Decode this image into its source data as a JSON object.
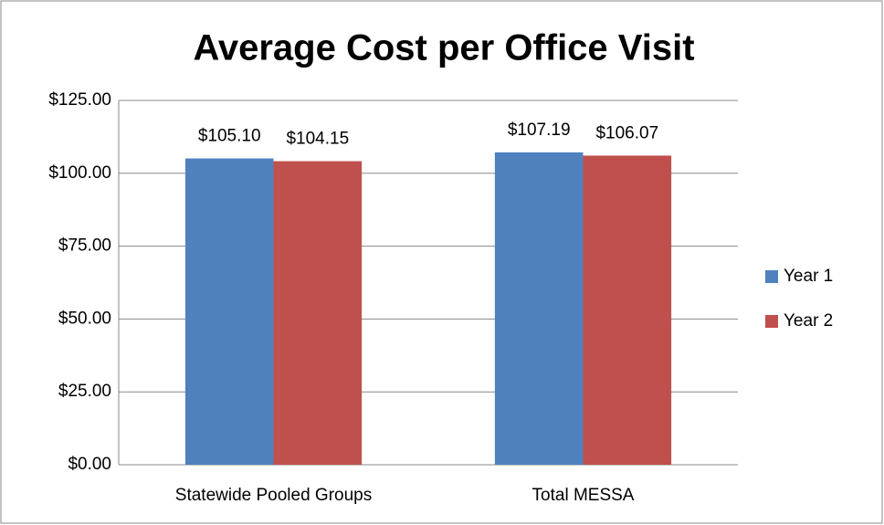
{
  "chart_data": {
    "type": "bar",
    "title": "Average Cost per Office Visit",
    "categories": [
      "Statewide Pooled Groups",
      "Total MESSA"
    ],
    "series": [
      {
        "name": "Year 1",
        "color": "#4f81bd",
        "values": [
          105.1,
          107.19
        ],
        "value_labels": [
          "$105.10",
          "$107.19"
        ]
      },
      {
        "name": "Year 2",
        "color": "#c0504d",
        "values": [
          104.15,
          106.07
        ],
        "value_labels": [
          "$104.15",
          "$106.07"
        ]
      }
    ],
    "ylim": [
      0,
      125
    ],
    "yticks": [
      {
        "value": 0,
        "label": "$0.00"
      },
      {
        "value": 25,
        "label": "$25.00"
      },
      {
        "value": 50,
        "label": "$50.00"
      },
      {
        "value": 75,
        "label": "$75.00"
      },
      {
        "value": 100,
        "label": "$100.00"
      },
      {
        "value": 125,
        "label": "$125.00"
      }
    ],
    "grid": true,
    "legend": "right"
  }
}
